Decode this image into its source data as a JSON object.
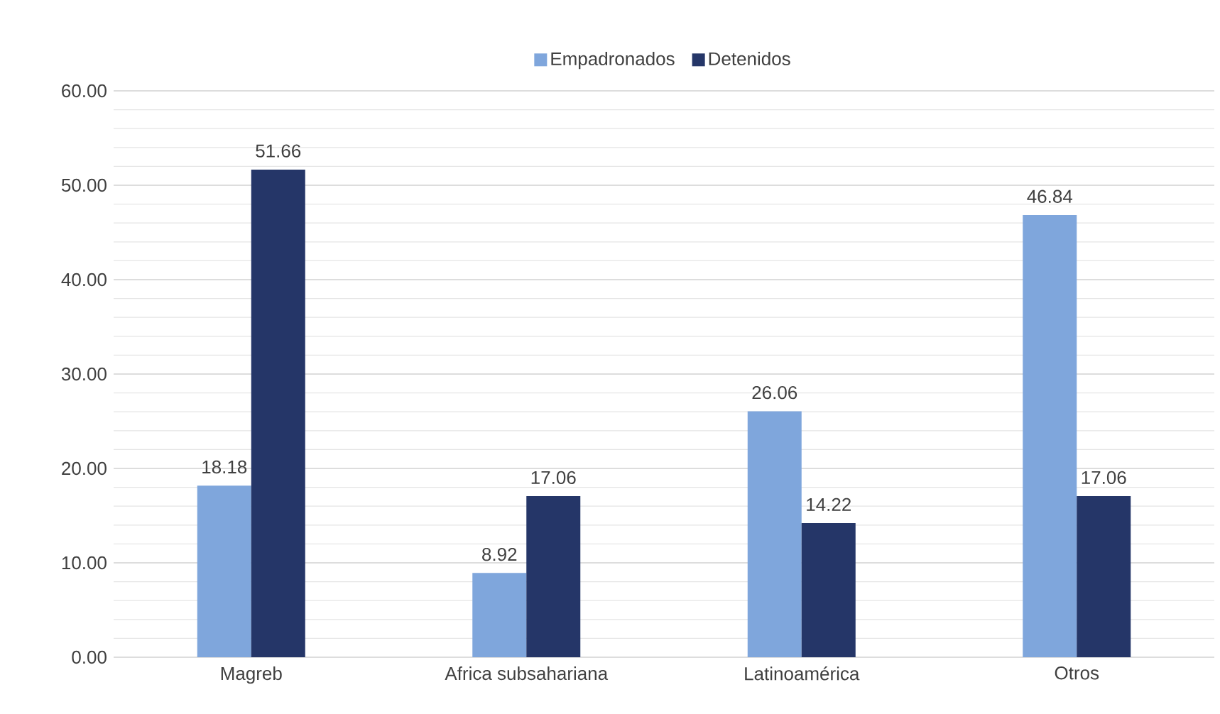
{
  "chart_data": {
    "type": "bar",
    "categories": [
      "Magreb",
      "Africa subsahariana",
      "Latinoamérica",
      "Otros"
    ],
    "series": [
      {
        "name": "Empadronados",
        "color": "#7fa6dc",
        "values": [
          18.18,
          8.92,
          26.06,
          46.84
        ],
        "value_labels": [
          "18.18",
          "8.92",
          "26.06",
          "46.84"
        ]
      },
      {
        "name": "Detenidos",
        "color": "#253668",
        "values": [
          51.66,
          17.06,
          14.22,
          17.06
        ],
        "value_labels": [
          "51.66",
          "17.06",
          "14.22",
          "17.06"
        ]
      }
    ],
    "ylim": [
      0,
      60
    ],
    "yticks": [
      {
        "value": 0,
        "label": "0.00"
      },
      {
        "value": 10,
        "label": "10.00"
      },
      {
        "value": 20,
        "label": "20.00"
      },
      {
        "value": 30,
        "label": "30.00"
      },
      {
        "value": 40,
        "label": "40.00"
      },
      {
        "value": 50,
        "label": "50.00"
      },
      {
        "value": 60,
        "label": "60.00"
      }
    ],
    "grid": "y",
    "legend": "top"
  }
}
